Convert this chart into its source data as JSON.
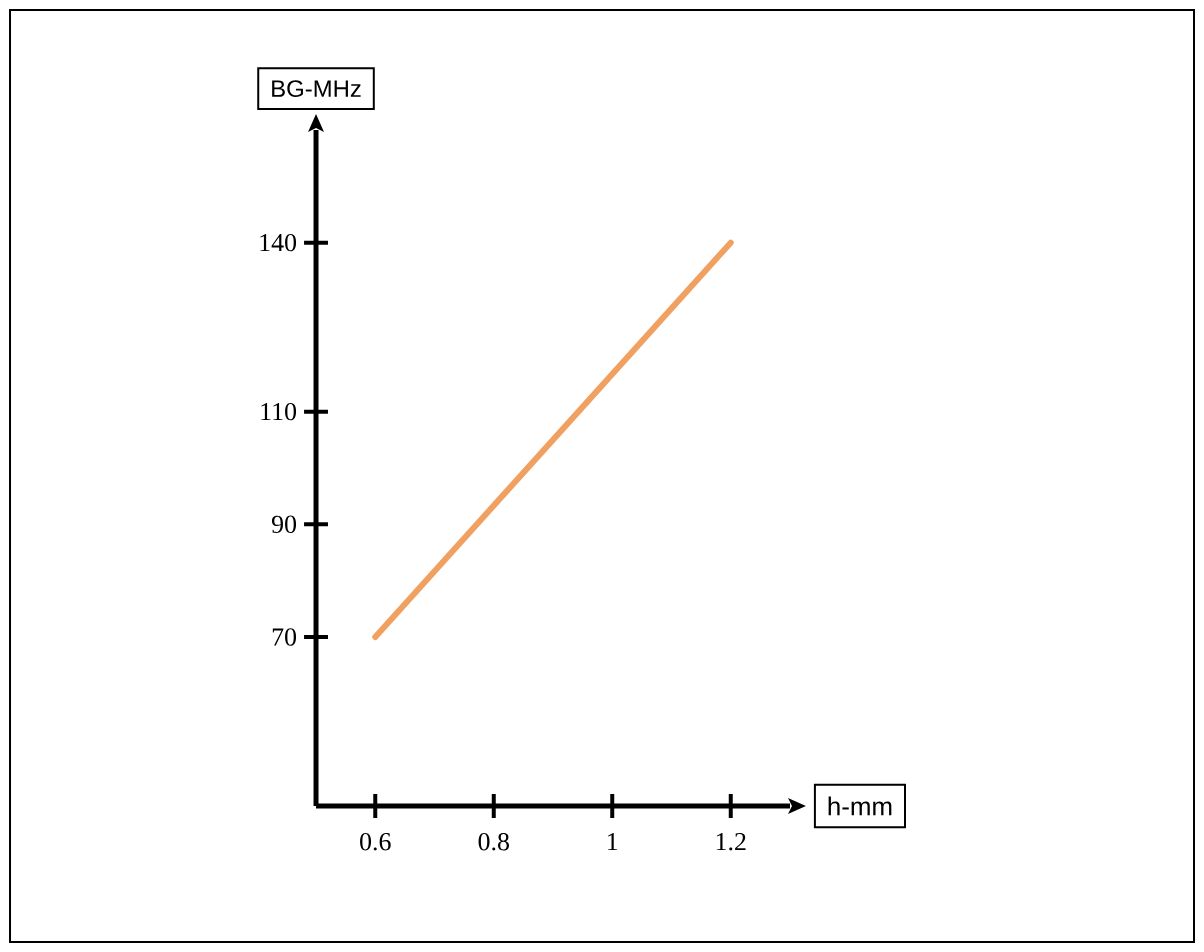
{
  "chart_data": {
    "type": "line",
    "xlabel": "h-mm",
    "ylabel": "BG-MHz",
    "x": [
      0.6,
      1.2
    ],
    "series": [
      {
        "color": "#f0a060",
        "values": [
          70,
          140
        ]
      }
    ],
    "xlim": [
      0.5,
      1.3
    ],
    "ylim": [
      40,
      160
    ],
    "xticks": [
      0.6,
      0.8,
      1,
      1.2
    ],
    "yticks": [
      70,
      90,
      110,
      140
    ],
    "grid": false
  }
}
